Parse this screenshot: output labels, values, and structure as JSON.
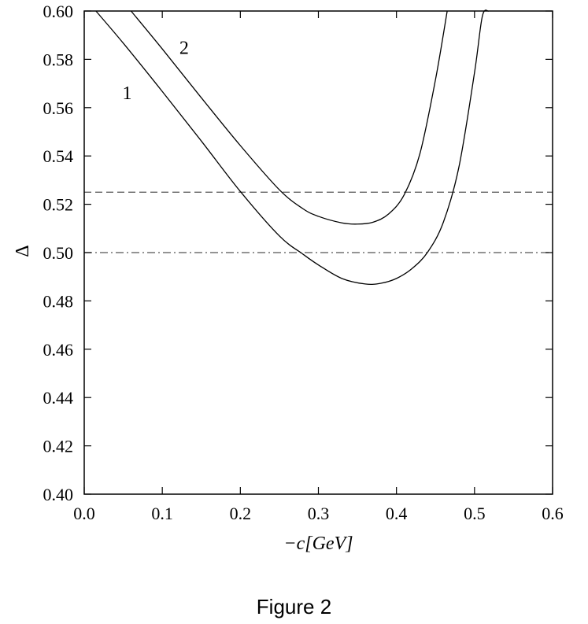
{
  "caption": "Figure 2",
  "chart_data": {
    "type": "line",
    "title": "",
    "xlabel": "−c[GeV]",
    "ylabel": "Δ",
    "xlim": [
      0.0,
      0.6
    ],
    "ylim": [
      0.4,
      0.6
    ],
    "x_ticks": [
      0.0,
      0.1,
      0.2,
      0.3,
      0.4,
      0.5,
      0.6
    ],
    "x_tick_labels": [
      "0.0",
      "0.1",
      "0.2",
      "0.3",
      "0.4",
      "0.5",
      "0.6"
    ],
    "y_ticks": [
      0.4,
      0.42,
      0.44,
      0.46,
      0.48,
      0.5,
      0.52,
      0.54,
      0.56,
      0.58,
      0.6
    ],
    "y_tick_labels": [
      "0.40",
      "0.42",
      "0.44",
      "0.46",
      "0.48",
      "0.50",
      "0.52",
      "0.54",
      "0.56",
      "0.58",
      "0.60"
    ],
    "grid": false,
    "series": [
      {
        "name": "1",
        "style": "solid",
        "color": "#000000",
        "points": [
          [
            0.015,
            0.6
          ],
          [
            0.05,
            0.5867
          ],
          [
            0.1,
            0.5667
          ],
          [
            0.15,
            0.5462
          ],
          [
            0.2,
            0.5253
          ],
          [
            0.25,
            0.5069
          ],
          [
            0.28,
            0.4994
          ],
          [
            0.3,
            0.4949
          ],
          [
            0.33,
            0.4893
          ],
          [
            0.36,
            0.487
          ],
          [
            0.38,
            0.4873
          ],
          [
            0.4,
            0.4893
          ],
          [
            0.42,
            0.4934
          ],
          [
            0.44,
            0.5002
          ],
          [
            0.46,
            0.5125
          ],
          [
            0.48,
            0.5354
          ],
          [
            0.5,
            0.5745
          ],
          [
            0.51,
            0.5978
          ],
          [
            0.518,
            0.6
          ]
        ]
      },
      {
        "name": "2",
        "style": "solid",
        "color": "#000000",
        "points": [
          [
            0.06,
            0.6
          ],
          [
            0.1,
            0.5843
          ],
          [
            0.15,
            0.5641
          ],
          [
            0.2,
            0.5443
          ],
          [
            0.25,
            0.526
          ],
          [
            0.28,
            0.5182
          ],
          [
            0.3,
            0.515
          ],
          [
            0.33,
            0.5123
          ],
          [
            0.35,
            0.5118
          ],
          [
            0.37,
            0.5126
          ],
          [
            0.39,
            0.516
          ],
          [
            0.41,
            0.524
          ],
          [
            0.43,
            0.5409
          ],
          [
            0.45,
            0.5716
          ],
          [
            0.465,
            0.6
          ]
        ]
      }
    ],
    "reference_lines": [
      {
        "y": 0.525,
        "style": "dashed",
        "color": "#555555"
      },
      {
        "y": 0.5,
        "style": "dash-dot",
        "color": "#555555"
      }
    ],
    "annotations": [
      {
        "text": "1",
        "x": 0.055,
        "y": 0.5635
      },
      {
        "text": "2",
        "x": 0.128,
        "y": 0.5822
      }
    ]
  }
}
